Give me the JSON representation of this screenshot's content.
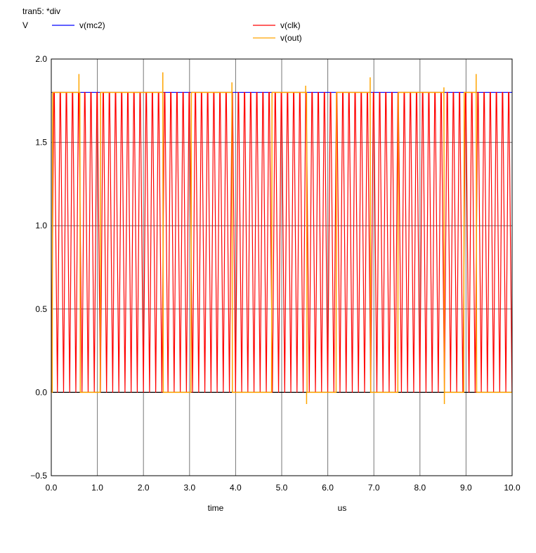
{
  "chart_data": {
    "type": "line",
    "title": "tran5: *div",
    "ylabel": "V",
    "xlabel": "time",
    "xunit": "us",
    "xlim": [
      0.0,
      10.0
    ],
    "ylim": [
      -0.5,
      2.0
    ],
    "xticks": [
      "0.0",
      "1.0",
      "2.0",
      "3.0",
      "4.0",
      "5.0",
      "6.0",
      "7.0",
      "8.0",
      "9.0",
      "10.0"
    ],
    "yticks": [
      "−0.5",
      "0.0",
      "0.5",
      "1.0",
      "1.5",
      "2.0"
    ],
    "grid": true,
    "legend_position": "top",
    "series": [
      {
        "name": "v(mc2)",
        "color": "#0000ff",
        "x": [
          0.0,
          10.0
        ],
        "y": [
          1.8,
          1.8
        ]
      },
      {
        "name": "v(clk)",
        "color": "#ff0000",
        "waveform": "square-clock",
        "low": 0.0,
        "high": 1.8,
        "period_us": 0.1333,
        "x_start": 0.0,
        "x_end": 10.0
      },
      {
        "name": "v(out)",
        "color": "#ffa500",
        "x": [
          0.0,
          0.02,
          0.03,
          0.62,
          0.63,
          1.06,
          1.07,
          2.42,
          2.43,
          3.03,
          3.04,
          3.92,
          3.93,
          4.78,
          4.79,
          5.54,
          5.55,
          6.18,
          6.19,
          6.92,
          6.93,
          7.52,
          7.53,
          8.52,
          8.53,
          8.95,
          8.96,
          9.22,
          9.23,
          10.0
        ],
        "y": [
          0.0,
          0.0,
          1.8,
          1.8,
          0.0,
          0.0,
          1.8,
          1.8,
          0.0,
          0.0,
          1.8,
          1.8,
          0.0,
          0.0,
          1.8,
          1.8,
          0.0,
          0.0,
          1.8,
          1.8,
          0.0,
          0.0,
          1.8,
          1.8,
          0.0,
          0.0,
          1.8,
          1.8,
          0.0,
          0.0
        ],
        "spikes": [
          {
            "x": 0.6,
            "y": 1.91
          },
          {
            "x": 2.42,
            "y": 1.92
          },
          {
            "x": 3.92,
            "y": 1.86
          },
          {
            "x": 5.52,
            "y": 1.84
          },
          {
            "x": 5.54,
            "y": -0.07
          },
          {
            "x": 6.92,
            "y": 1.89
          },
          {
            "x": 8.52,
            "y": 1.83
          },
          {
            "x": 8.53,
            "y": -0.07
          },
          {
            "x": 9.22,
            "y": 1.91
          }
        ]
      }
    ]
  }
}
